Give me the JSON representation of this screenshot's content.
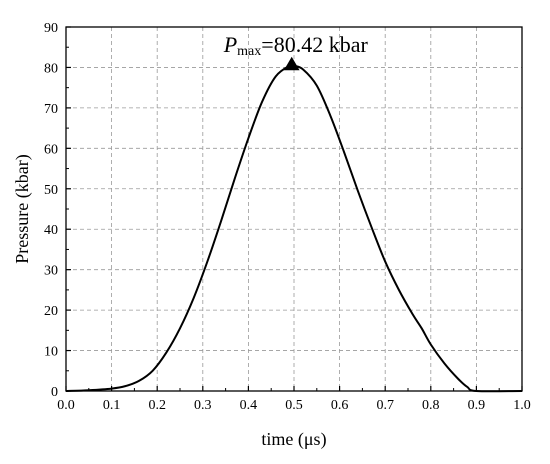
{
  "chart_data": {
    "type": "line",
    "xlabel": "time (μs)",
    "ylabel": "Pressure (kbar)",
    "xlim": [
      0.0,
      1.0
    ],
    "ylim": [
      0,
      90
    ],
    "x_ticks": [
      "0.0",
      "0.1",
      "0.2",
      "0.3",
      "0.4",
      "0.5",
      "0.6",
      "0.7",
      "0.8",
      "0.9",
      "1.0"
    ],
    "y_ticks": [
      "0",
      "10",
      "20",
      "30",
      "40",
      "50",
      "60",
      "70",
      "80",
      "90"
    ],
    "grid": true,
    "series": [
      {
        "x": [
          0.0,
          0.05,
          0.1,
          0.13,
          0.16,
          0.19,
          0.22,
          0.25,
          0.28,
          0.31,
          0.34,
          0.37,
          0.4,
          0.43,
          0.46,
          0.49,
          0.5,
          0.52,
          0.55,
          0.58,
          0.61,
          0.64,
          0.67,
          0.7,
          0.73,
          0.76,
          0.78,
          0.8,
          0.83,
          0.86,
          0.88,
          0.9,
          1.0
        ],
        "y": [
          0,
          0.2,
          0.6,
          1.2,
          2.5,
          5.0,
          9.5,
          15.5,
          23.0,
          32.0,
          42.0,
          52.5,
          62.5,
          71.5,
          77.8,
          80.4,
          80.4,
          79.5,
          75.5,
          68.0,
          59.0,
          49.5,
          40.5,
          32.0,
          25.0,
          19.0,
          15.5,
          11.5,
          6.8,
          3.0,
          1.0,
          0,
          0
        ],
        "color": "#000000"
      }
    ],
    "peak_marker": {
      "x": 0.495,
      "y": 80.42
    },
    "annotation": {
      "symbol": "P",
      "subscript": "max",
      "text": "=80.42 kbar"
    }
  }
}
